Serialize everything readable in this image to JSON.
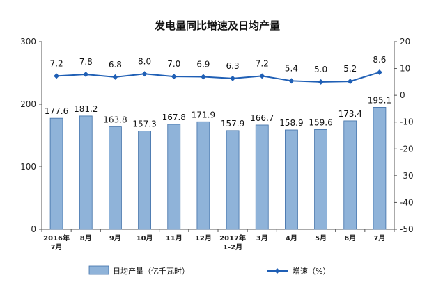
{
  "chart_data": {
    "type": "bar+line",
    "title": "发电量同比增速及日均产量",
    "categories": [
      [
        "2016年",
        "7月"
      ],
      [
        "8月"
      ],
      [
        "9月"
      ],
      [
        "10月"
      ],
      [
        "11月"
      ],
      [
        "12月"
      ],
      [
        "2017年",
        "1-2月"
      ],
      [
        "3月"
      ],
      [
        "4月"
      ],
      [
        "5月"
      ],
      [
        "6月"
      ],
      [
        "7月"
      ]
    ],
    "series": [
      {
        "name": "日均产量（亿千瓦时）",
        "type": "bar",
        "axis": "left",
        "color": "#8FB3D9",
        "values": [
          177.6,
          181.2,
          163.8,
          157.3,
          167.8,
          171.9,
          157.9,
          166.7,
          158.9,
          159.6,
          173.4,
          195.1
        ]
      },
      {
        "name": "增速（%）",
        "type": "line",
        "axis": "right",
        "color": "#1F5FB5",
        "values": [
          7.2,
          7.8,
          6.8,
          8.0,
          7.0,
          6.9,
          6.3,
          7.2,
          5.4,
          5.0,
          5.2,
          8.6
        ]
      }
    ],
    "left_axis": {
      "min": 0,
      "max": 300,
      "ticks": [
        0,
        100,
        200,
        300
      ]
    },
    "right_axis": {
      "min": -50,
      "max": 20,
      "ticks": [
        -50,
        -40,
        -30,
        -20,
        -10,
        0,
        10,
        20
      ]
    },
    "grid": false,
    "legend_position": "bottom"
  }
}
